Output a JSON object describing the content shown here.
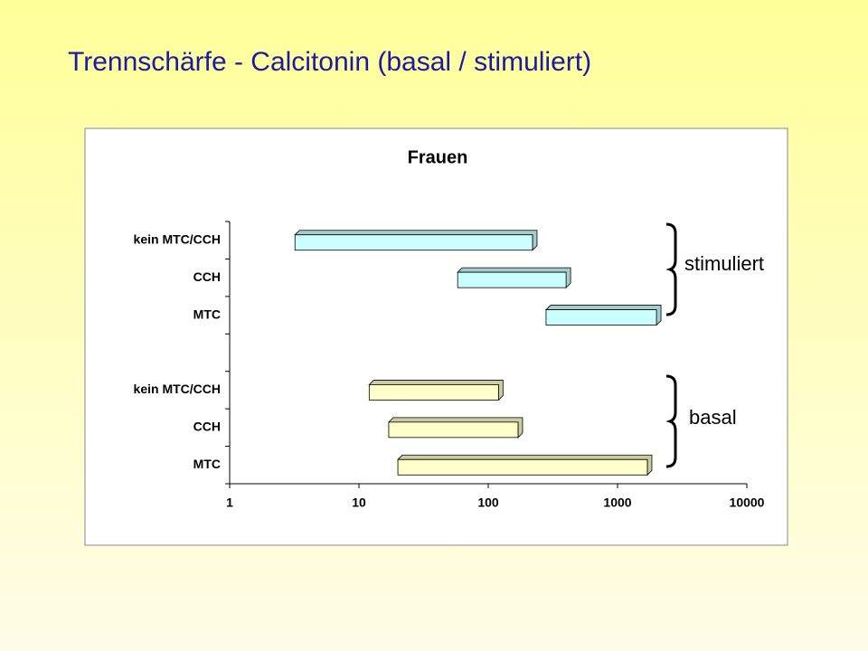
{
  "title": "Trennschärfe - Calcitonin (basal / stimuliert)",
  "chart_data": {
    "type": "range-bar",
    "title": "Frauen",
    "categories": [
      "kein MTC/CCH",
      "CCH",
      "MTC",
      null,
      "kein MTC/CCH",
      "CCH",
      "MTC"
    ],
    "series": [
      {
        "name": "stimuliert",
        "color": "#ccffff",
        "values": [
          [
            3.2,
            220
          ],
          [
            58,
            400
          ],
          [
            280,
            2000
          ],
          null,
          null,
          null,
          null
        ]
      },
      {
        "name": "basal",
        "color": "#ffffcc",
        "values": [
          null,
          null,
          null,
          null,
          [
            12,
            120
          ],
          [
            17,
            170
          ],
          [
            20,
            1700
          ]
        ]
      }
    ],
    "xlim": [
      1,
      10000
    ],
    "xticks": [
      1,
      10,
      100,
      1000,
      10000
    ],
    "log_x": true
  }
}
